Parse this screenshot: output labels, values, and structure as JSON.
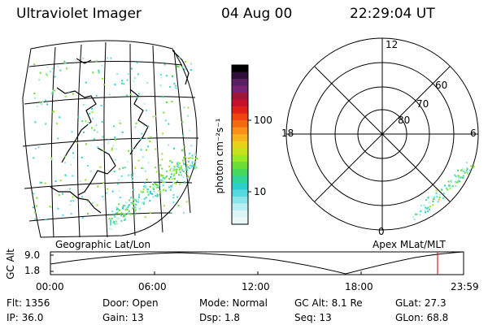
{
  "header": {
    "instrument": "Ultraviolet Imager",
    "date": "04 Aug 00",
    "time": "22:29:04 UT"
  },
  "colorbar": {
    "unit_label": "photon cm⁻²s⁻¹",
    "ticks": [
      "100",
      "10"
    ],
    "colors": [
      "#000000",
      "#30103a",
      "#5a1f63",
      "#7a2070",
      "#a01638",
      "#c8102a",
      "#e0211a",
      "#f04412",
      "#f56a10",
      "#f8901a",
      "#f7b21e",
      "#e9d21a",
      "#c7e21c",
      "#95ea24",
      "#6bdd34",
      "#46d858",
      "#30d59a",
      "#2ccfc9",
      "#55d8de",
      "#8ce4ea",
      "#b9eef2",
      "#dcf5f7",
      "#eaf8fa"
    ]
  },
  "left_panel": {
    "caption": "Geographic Lat/Lon"
  },
  "right_panel": {
    "caption": "Apex MLat/MLT",
    "mlt_labels": [
      "12",
      "18",
      "6",
      "0"
    ],
    "lat_labels": [
      "60",
      "70",
      "80"
    ]
  },
  "altitude_plot": {
    "ylabel": "GC Alt",
    "yticks": [
      "9.0",
      "1.8"
    ],
    "xticks": [
      "00:00",
      "06:00",
      "12:00",
      "18:00",
      "23:59"
    ],
    "marker_color": "#d42020"
  },
  "info": {
    "flt": "Flt: 1356",
    "ip": "IP: 36.0",
    "door": "Door: Open",
    "gain": "Gain: 13",
    "mode": "Mode: Normal",
    "dsp": "Dsp:    1.8",
    "gcalt": "GC Alt: 8.1 Re",
    "seq": "Seq: 13",
    "glat": "GLat:  27.3",
    "glon": "GLon:  68.8"
  }
}
